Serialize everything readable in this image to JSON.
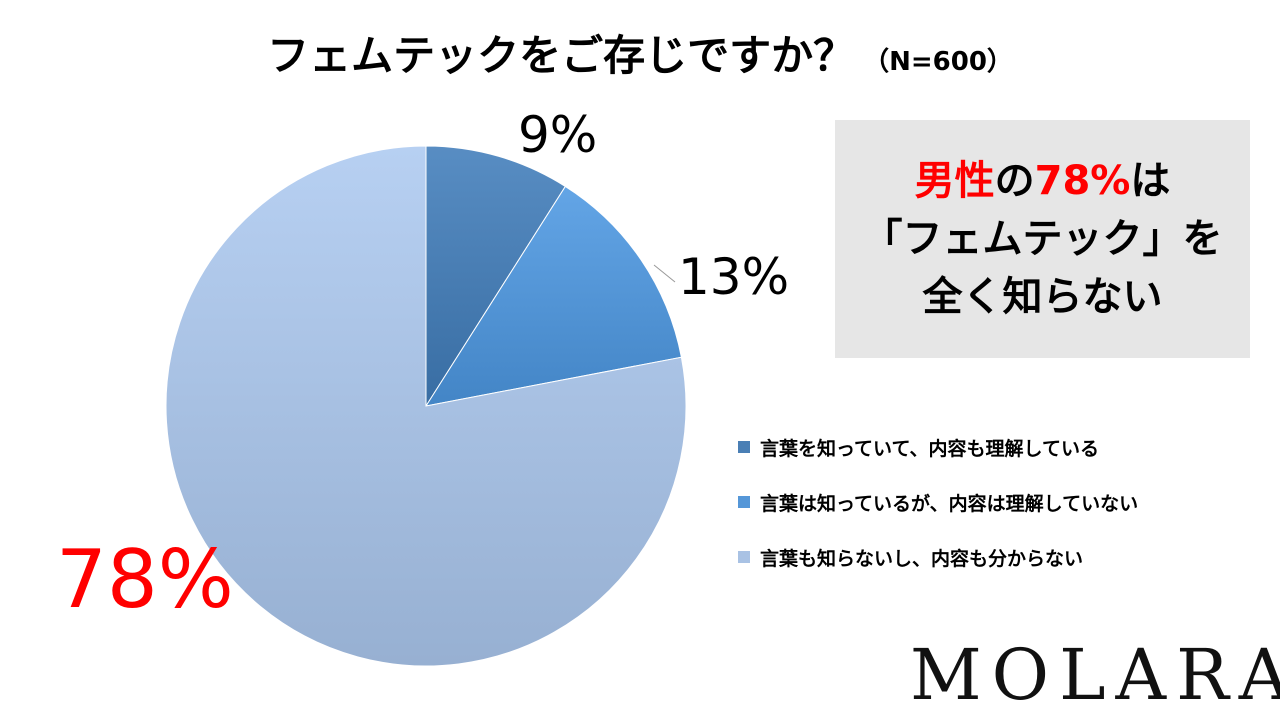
{
  "title": {
    "main": "フェムテックをご存じですか？",
    "sample": "（N=600）"
  },
  "chart_data": {
    "type": "pie",
    "title": "フェムテックをご存じですか？（N=600）",
    "categories": [
      "言葉を知っていて、内容も理解している",
      "言葉は知っているが、内容は理解していない",
      "言葉も知らないし、内容も分からない"
    ],
    "values": [
      9,
      13,
      78
    ],
    "value_labels": [
      "9%",
      "13%",
      "78%"
    ],
    "colors": [
      "#4a7fb5",
      "#5597d8",
      "#a9c2e4"
    ],
    "legend_position": "right",
    "start_angle": "12 o'clock, clockwise"
  },
  "callout": {
    "line1_red_a": "男性",
    "line1_black_a": "の",
    "line1_red_b": "78%",
    "line1_black_b": "は",
    "line2": "「フェムテック」を",
    "line3": "全く知らない"
  },
  "logo": {
    "text": "MOLARA"
  }
}
